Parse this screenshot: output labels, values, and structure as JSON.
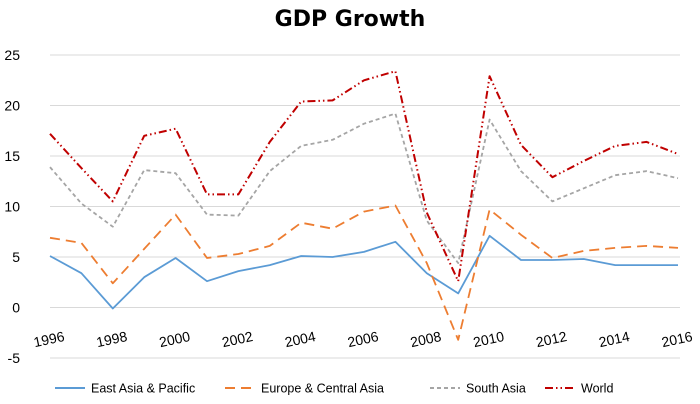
{
  "chart_data": {
    "type": "line",
    "title": "GDP Growth",
    "xlabel": "",
    "ylabel": "",
    "x": [
      1996,
      1997,
      1998,
      1999,
      2000,
      2001,
      2002,
      2003,
      2004,
      2005,
      2006,
      2007,
      2008,
      2009,
      2010,
      2011,
      2012,
      2013,
      2014,
      2015,
      2016
    ],
    "x_tick_labels": [
      "1996",
      "1998",
      "2000",
      "2002",
      "2004",
      "2006",
      "2008",
      "2010",
      "2012",
      "2014",
      "2016"
    ],
    "y_ticks": [
      -5,
      0,
      5,
      10,
      15,
      20,
      25
    ],
    "ylim": [
      -5,
      25
    ],
    "grid": true,
    "legend_position": "bottom",
    "series": [
      {
        "name": "East Asia & Pacific",
        "color": "#5b9bd5",
        "dash": "solid",
        "values": [
          5.1,
          3.4,
          -0.1,
          3.0,
          4.9,
          2.6,
          3.6,
          4.2,
          5.1,
          5.0,
          5.5,
          6.5,
          3.4,
          1.4,
          7.1,
          4.7,
          4.7,
          4.8,
          4.2,
          4.2,
          4.2
        ]
      },
      {
        "name": "Europe & Central Asia",
        "color": "#ed7d31",
        "dash": "long-dash",
        "values": [
          6.9,
          6.4,
          2.4,
          5.8,
          9.2,
          4.9,
          5.3,
          6.1,
          8.4,
          7.8,
          9.5,
          10.1,
          4.4,
          -3.2,
          9.7,
          7.2,
          4.9,
          5.6,
          5.9,
          6.1,
          5.9
        ]
      },
      {
        "name": "South Asia",
        "color": "#a5a5a5",
        "dash": "short-dash",
        "values": [
          13.9,
          10.3,
          8.0,
          13.6,
          13.3,
          9.2,
          9.1,
          13.5,
          16.0,
          16.6,
          18.2,
          19.2,
          8.6,
          4.4,
          18.6,
          13.5,
          10.5,
          11.8,
          13.1,
          13.5,
          12.8
        ]
      },
      {
        "name": "World",
        "color": "#c00000",
        "dash": "dash-dot-dot",
        "values": [
          17.2,
          13.8,
          10.5,
          17.0,
          17.7,
          11.2,
          11.2,
          16.4,
          20.4,
          20.5,
          22.5,
          23.4,
          9.4,
          2.6,
          22.9,
          16.1,
          12.9,
          14.5,
          16.0,
          16.4,
          15.2
        ]
      }
    ]
  }
}
